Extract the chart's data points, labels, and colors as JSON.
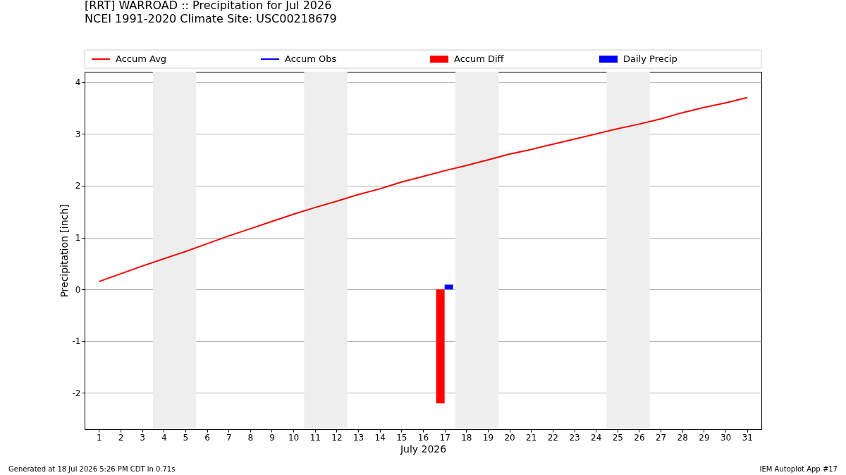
{
  "chart_data": {
    "type": "line",
    "title": "[RRT] WARROAD :: Precipitation for Jul 2026",
    "subtitle": "NCEI 1991-2020 Climate Site: USC00218679",
    "xlabel": "July 2026",
    "ylabel": "Precipitation [inch]",
    "x": [
      1,
      2,
      3,
      4,
      5,
      6,
      7,
      8,
      9,
      10,
      11,
      12,
      13,
      14,
      15,
      16,
      17,
      18,
      19,
      20,
      21,
      22,
      23,
      24,
      25,
      26,
      27,
      28,
      29,
      30,
      31
    ],
    "series": [
      {
        "name": "Accum Avg",
        "color": "#ff0000",
        "values": [
          0.15,
          0.3,
          0.45,
          0.59,
          0.73,
          0.88,
          1.03,
          1.17,
          1.31,
          1.45,
          1.58,
          1.7,
          1.83,
          1.94,
          2.07,
          2.18,
          2.29,
          2.39,
          2.5,
          2.61,
          2.7,
          2.8,
          2.9,
          3.0,
          3.1,
          3.19,
          3.29,
          3.41,
          3.51,
          3.6,
          3.7
        ]
      },
      {
        "name": "Accum Obs",
        "color": "#0000ff",
        "values": [
          null,
          null,
          null,
          null,
          null,
          null,
          null,
          null,
          null,
          null,
          null,
          null,
          null,
          null,
          null,
          null,
          null,
          null,
          null,
          null,
          null,
          null,
          null,
          null,
          null,
          null,
          null,
          null,
          null,
          null,
          null
        ]
      },
      {
        "name": "Accum Diff",
        "type": "bar",
        "color": "#ff0000",
        "values": [
          null,
          null,
          null,
          null,
          null,
          null,
          null,
          null,
          null,
          null,
          null,
          null,
          null,
          null,
          null,
          null,
          -2.2,
          null,
          null,
          null,
          null,
          null,
          null,
          null,
          null,
          null,
          null,
          null,
          null,
          null,
          null
        ]
      },
      {
        "name": "Daily Precip",
        "type": "bar",
        "color": "#0000ff",
        "values": [
          null,
          null,
          null,
          null,
          null,
          null,
          null,
          null,
          null,
          null,
          null,
          null,
          null,
          null,
          null,
          null,
          0.09,
          null,
          null,
          null,
          null,
          null,
          null,
          null,
          null,
          null,
          null,
          null,
          null,
          null,
          null
        ]
      }
    ],
    "xlim": [
      0.5,
      31.5
    ],
    "xticks": [
      1,
      2,
      3,
      4,
      5,
      6,
      7,
      8,
      9,
      10,
      11,
      12,
      13,
      14,
      15,
      16,
      17,
      18,
      19,
      20,
      21,
      22,
      23,
      24,
      25,
      26,
      27,
      28,
      29,
      30,
      31
    ],
    "ylim": [
      -2.7,
      4.2
    ],
    "yticks": [
      -2,
      -1,
      0,
      1,
      2,
      3,
      4
    ],
    "bands": [
      {
        "axis": "x",
        "from": 3.5,
        "to": 5.5,
        "color": "#eeeeee"
      },
      {
        "axis": "x",
        "from": 10.5,
        "to": 12.5,
        "color": "#eeeeee"
      },
      {
        "axis": "x",
        "from": 17.5,
        "to": 19.5,
        "color": "#eeeeee"
      },
      {
        "axis": "x",
        "from": 24.5,
        "to": 26.5,
        "color": "#eeeeee"
      }
    ],
    "grid": "y",
    "legend": "top",
    "annotations": [
      "Generated at 18 Jul 2026 5:26 PM CDT in 0.71s",
      "IEM Autoplot App #17"
    ]
  }
}
